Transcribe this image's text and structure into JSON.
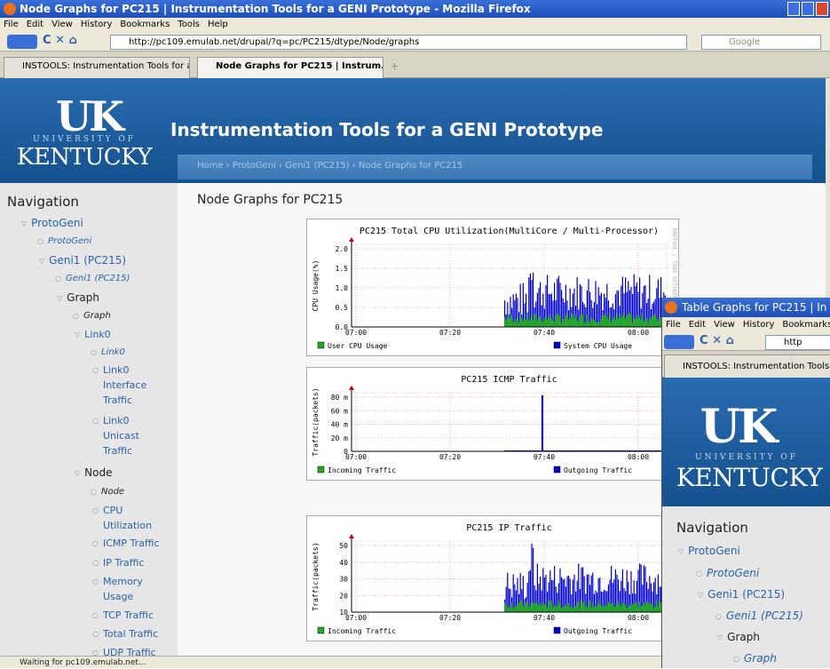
{
  "window": {
    "title": "Node Graphs for PC215 | Instrumentation Tools for a GENI Prototype - Mozilla Firefox",
    "menu": [
      "File",
      "Edit",
      "View",
      "History",
      "Bookmarks",
      "Tools",
      "Help"
    ],
    "url": "http://pc109.emulab.net/drupal/?q=pc/PC215/dtype/Node/graphs",
    "search": "Google",
    "tabs": [
      "INSTOOLS: Instrumentation Tools for a...",
      "Node Graphs for PC215 | Instrum..."
    ],
    "status": "Waiting for pc109.emulab.net..."
  },
  "site": {
    "logo": "UK",
    "university_of": "UNIVERSITY OF",
    "kentucky": "KENTUCKY",
    "title": "Instrumentation Tools for a GENI Prototype",
    "breadcrumb": "Home › ProtoGeni › Geni1 (PC215) › Node Graphs for PC215"
  },
  "sidebar": {
    "heading": "Navigation",
    "items": [
      "ProtoGeni",
      "ProtoGeni",
      "Geni1 (PC215)",
      "Geni1 (PC215)",
      "Graph",
      "Graph",
      "Link0",
      "Link0",
      "Link0 Interface Traffic",
      "Link0 Unicast Traffic",
      "Node",
      "Node",
      "CPU Utilization",
      "ICMP Traffic",
      "IP Traffic",
      "Memory Usage",
      "TCP Traffic",
      "Total Traffic",
      "UDP Traffic"
    ]
  },
  "main": {
    "heading": "Node Graphs for PC215",
    "graphs": [
      {
        "title": "PC215 Total CPU Utilization(MultiCore / Multi-Processor)",
        "y_label": "CPU Usage(%)",
        "y_ticks": [
          "2.0",
          "1.5",
          "1.0",
          "0.5",
          "0.0"
        ],
        "x_ticks": [
          "07:00",
          "07:20",
          "07:40",
          "08:00"
        ],
        "legend": [
          "User CPU Usage",
          "System CPU Usage"
        ],
        "watermark": "RRDTOOL / TOBI OETIKER"
      },
      {
        "title": "PC215 ICMP Traffic",
        "y_label": "Traffic(packets)",
        "y_ticks": [
          "80 m",
          "60 m",
          "40 m",
          "20 m",
          "0"
        ],
        "x_ticks": [
          "07:00",
          "07:20",
          "07:40",
          "08:00"
        ],
        "legend": [
          "Incoming Traffic",
          "Outgoing Traffic"
        ]
      },
      {
        "title": "PC215 IP Traffic",
        "y_label": "Traffic(packets)",
        "y_ticks": [
          "50",
          "40",
          "30",
          "20",
          "10"
        ],
        "x_ticks": [
          "07:00",
          "07:20",
          "07:40",
          "08:00"
        ],
        "legend": [
          "Incoming Traffic",
          "Outgoing Traffic"
        ]
      }
    ]
  },
  "second_window": {
    "title": "Table Graphs for PC215 | In",
    "menu": [
      "File",
      "Edit",
      "View",
      "History",
      "Bookmarks"
    ],
    "url": "http",
    "tab": "INSTOOLS: Instrumentation Tools",
    "logo": "UK",
    "university_of": "UNIVERSITY OF",
    "kentucky": "KENTUCKY",
    "heading": "Navigation",
    "items": [
      "ProtoGeni",
      "ProtoGeni",
      "Geni1 (PC215)",
      "Geni1 (PC215)",
      "Graph",
      "Graph"
    ]
  }
}
